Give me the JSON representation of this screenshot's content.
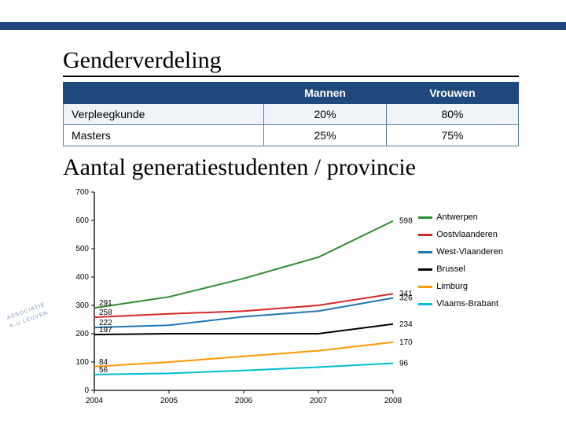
{
  "titles": {
    "main": "Genderverdeling",
    "sub": "Aantal generatiestudenten / provincie"
  },
  "gender_table": {
    "columns": [
      "",
      "Mannen",
      "Vrouwen"
    ],
    "rows": [
      {
        "label": "Verpleegkunde",
        "mannen": "20%",
        "vrouwen": "80%"
      },
      {
        "label": "Masters",
        "mannen": "25%",
        "vrouwen": "75%"
      }
    ],
    "header_bg": "#1f497d",
    "header_fg": "#ffffff",
    "border_color": "#5b7ca3",
    "row_alt_bg": "#eef3f8",
    "fontsize": 14
  },
  "line_chart": {
    "type": "line",
    "x_categories": [
      "2004",
      "2005",
      "2006",
      "2007",
      "2008"
    ],
    "ylim": [
      0,
      700
    ],
    "ytick_step": 100,
    "background_color": "#ffffff",
    "axis_color": "#000000",
    "grid_on": false,
    "axis_fontsize": 10,
    "line_width": 2,
    "series": [
      {
        "name": "Antwerpen",
        "color": "#2e8b2e",
        "values": [
          291,
          330,
          395,
          470,
          598
        ]
      },
      {
        "name": "Oostvlaanderen",
        "color": "#d62728",
        "values": [
          258,
          270,
          280,
          300,
          341
        ]
      },
      {
        "name": "West-Vlaanderen",
        "color": "#1f77b4",
        "values": [
          222,
          230,
          260,
          280,
          326
        ]
      },
      {
        "name": "Brussel",
        "color": "#000000",
        "values": [
          197,
          200,
          200,
          200,
          234
        ]
      },
      {
        "name": "Limburg",
        "color": "#ff9900",
        "values": [
          84,
          100,
          120,
          140,
          170
        ]
      },
      {
        "name": "Vlaams-Brabant",
        "color": "#00bcd4",
        "values": [
          56,
          60,
          70,
          82,
          96
        ]
      }
    ],
    "start_labels_x": 0,
    "start_labels": [
      "291",
      "258",
      "222",
      "197",
      "84",
      "56"
    ],
    "end_labels_x": 4,
    "end_labels": [
      "598",
      "341",
      "326",
      "234",
      "170",
      "96"
    ],
    "legend_position": "right",
    "label_fontsize": 10
  },
  "logo_text": "ASSOCIATIE K.U.LEUVEN"
}
